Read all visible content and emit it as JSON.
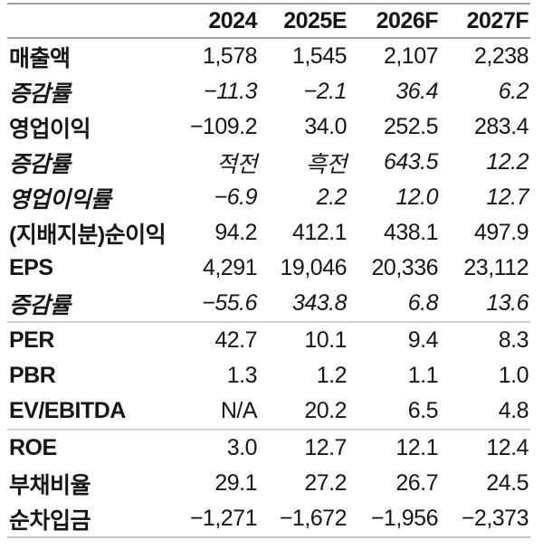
{
  "chart_data": {
    "type": "table",
    "title": "",
    "columns": [
      "2024",
      "2025E",
      "2026F",
      "2027F"
    ],
    "rows": [
      {
        "label": "매출액",
        "italic": false,
        "section_end": false,
        "values": [
          "1,578",
          "1,545",
          "2,107",
          "2,238"
        ]
      },
      {
        "label": "증감률",
        "italic": true,
        "section_end": false,
        "values": [
          "−11.3",
          "−2.1",
          "36.4",
          "6.2"
        ]
      },
      {
        "label": "영업이익",
        "italic": false,
        "section_end": false,
        "values": [
          "−109.2",
          "34.0",
          "252.5",
          "283.4"
        ]
      },
      {
        "label": "증감률",
        "italic": true,
        "section_end": false,
        "values": [
          "적전",
          "흑전",
          "643.5",
          "12.2"
        ]
      },
      {
        "label": "영업이익률",
        "italic": true,
        "section_end": false,
        "values": [
          "−6.9",
          "2.2",
          "12.0",
          "12.7"
        ]
      },
      {
        "label": "(지배지분)순이익",
        "italic": false,
        "section_end": false,
        "values": [
          "94.2",
          "412.1",
          "438.1",
          "497.9"
        ]
      },
      {
        "label": "EPS",
        "italic": false,
        "section_end": false,
        "values": [
          "4,291",
          "19,046",
          "20,336",
          "23,112"
        ]
      },
      {
        "label": "증감률",
        "italic": true,
        "section_end": true,
        "values": [
          "−55.6",
          "343.8",
          "6.8",
          "13.6"
        ]
      },
      {
        "label": "PER",
        "italic": false,
        "section_end": false,
        "values": [
          "42.7",
          "10.1",
          "9.4",
          "8.3"
        ]
      },
      {
        "label": "PBR",
        "italic": false,
        "section_end": false,
        "values": [
          "1.3",
          "1.2",
          "1.1",
          "1.0"
        ]
      },
      {
        "label": "EV/EBITDA",
        "italic": false,
        "section_end": true,
        "values": [
          "N/A",
          "20.2",
          "6.5",
          "4.8"
        ]
      },
      {
        "label": "ROE",
        "italic": false,
        "section_end": false,
        "values": [
          "3.0",
          "12.7",
          "12.1",
          "12.4"
        ]
      },
      {
        "label": "부채비율",
        "italic": false,
        "section_end": false,
        "values": [
          "29.1",
          "27.2",
          "26.7",
          "24.5"
        ]
      },
      {
        "label": "순차입금",
        "italic": false,
        "section_end": false,
        "values": [
          "−1,271",
          "−1,672",
          "−1,956",
          "−2,373"
        ]
      }
    ],
    "layout": {
      "grid": "horizontal-rules-only",
      "label_column_align": "left",
      "value_columns_align": "right"
    },
    "colors": {
      "text": "#161616",
      "rule_strong": "#a0a0a0",
      "rule_light": "#d2d2d2",
      "rule_bottom": "#c6c6c6",
      "background": "#ffffff"
    }
  }
}
